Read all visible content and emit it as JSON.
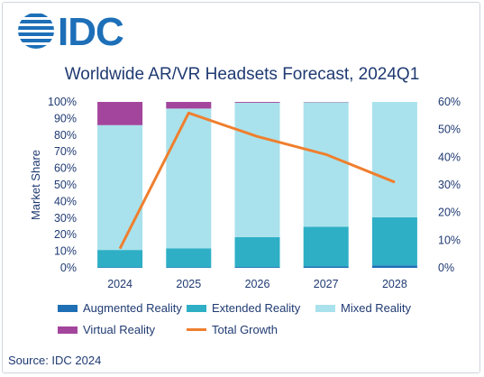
{
  "header": {
    "logo_text": "IDC",
    "title": "Worldwide AR/VR Headsets Forecast, 2024Q1"
  },
  "source": "Source: IDC 2024",
  "colors": {
    "augmented": "#1f6fb5",
    "extended": "#2eafc6",
    "mixed": "#a9e2ec",
    "virtual": "#a3459c",
    "growth": "#ef7f2e",
    "text": "#1f3a72"
  },
  "chart_data": {
    "type": "bar",
    "stacked": true,
    "categories": [
      "2024",
      "2025",
      "2026",
      "2027",
      "2028"
    ],
    "ylabel": "Market Share",
    "ylim": [
      0,
      100
    ],
    "y_ticks": [
      "0%",
      "10%",
      "20%",
      "30%",
      "40%",
      "50%",
      "60%",
      "70%",
      "80%",
      "90%",
      "100%"
    ],
    "y2lim": [
      0,
      60
    ],
    "y2_ticks": [
      "0%",
      "10%",
      "20%",
      "30%",
      "40%",
      "50%",
      "60%"
    ],
    "series": [
      {
        "name": "Augmented Reality",
        "values": [
          0.3,
          0.3,
          0.5,
          0.8,
          1.5
        ]
      },
      {
        "name": "Extended Reality",
        "values": [
          10.5,
          11.5,
          18,
          24,
          29
        ]
      },
      {
        "name": "Mixed Reality",
        "values": [
          75.2,
          84.2,
          81,
          75,
          69.5
        ]
      },
      {
        "name": "Virtual Reality",
        "values": [
          14,
          4,
          0.5,
          0.2,
          0
        ]
      }
    ],
    "line_series": {
      "name": "Total Growth",
      "axis": "right",
      "values": [
        7,
        56,
        47.5,
        41,
        31
      ]
    },
    "legend": [
      "Augmented Reality",
      "Extended Reality",
      "Mixed Reality",
      "Virtual Reality",
      "Total Growth"
    ],
    "legend_position": "bottom",
    "grid": false
  }
}
